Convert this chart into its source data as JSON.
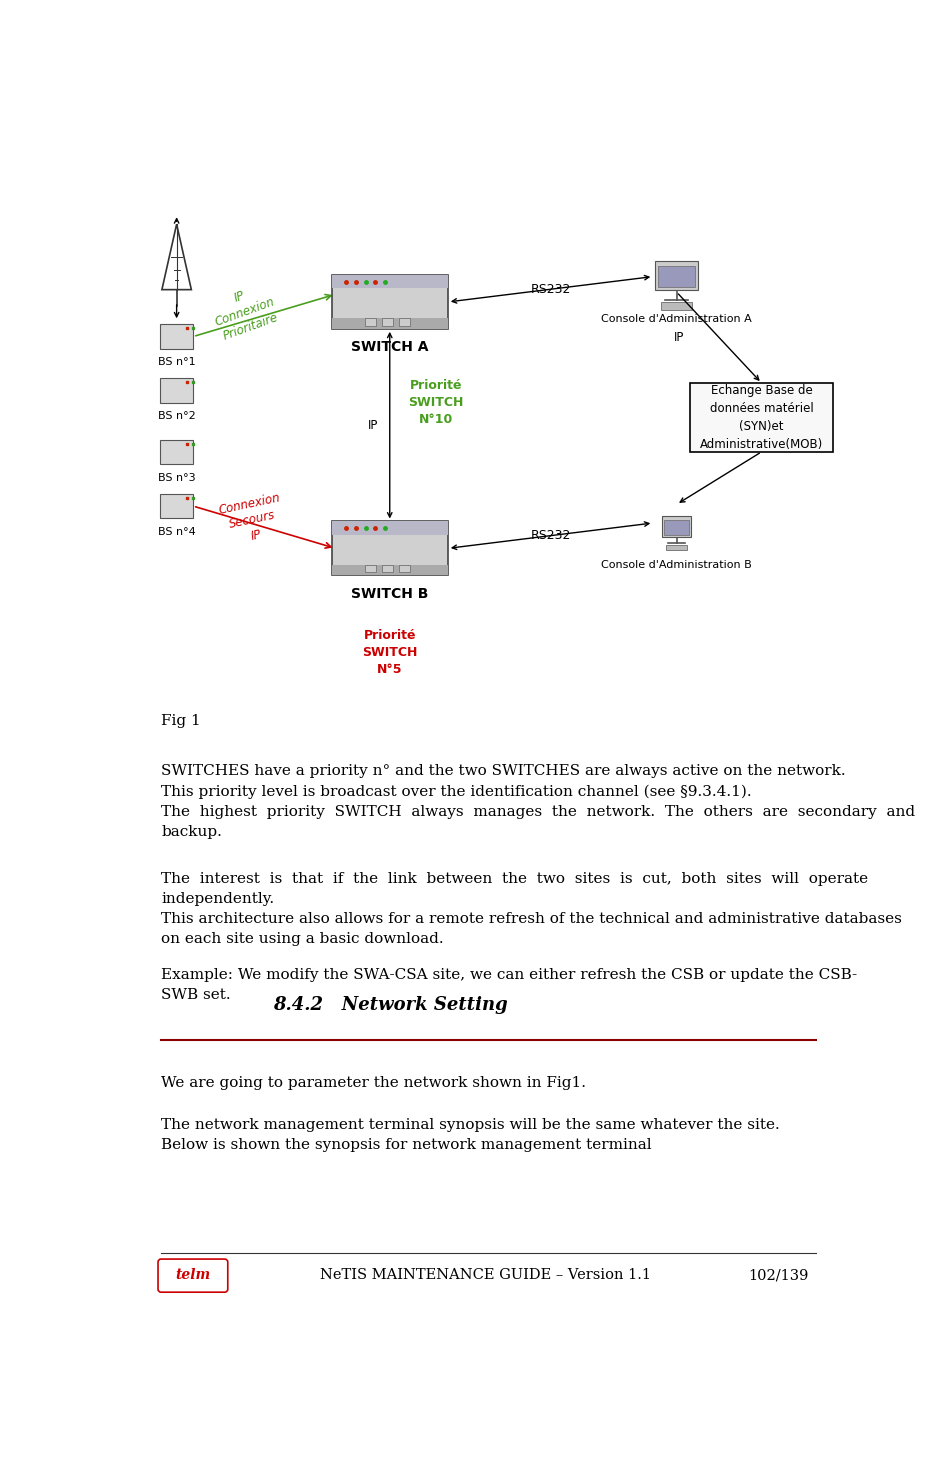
{
  "page_width": 9.48,
  "page_height": 14.64,
  "bg_color": "#ffffff",
  "fig1_caption": "Fig 1",
  "section_line_color": "#8B0000",
  "footer_text": "NeTIS MAINTENANCE GUIDE – Version 1.1",
  "footer_page": "102/139",
  "diagram": {
    "switch_a_label": "SWITCH A",
    "switch_b_label": "SWITCH B",
    "switch_a_priority_label": "Priorité\nSWITCH\nN°10",
    "switch_b_priority_label": "Priorité\nSWITCH\nN°5",
    "priority_color_a": "#4a9e1e",
    "priority_color_b": "#cc0000",
    "connexion_prioritaire_label": "IP\nConnexion\nPrioritaire",
    "connexion_secours_label": "Connexion\nSecours\nIP",
    "connexion_prioritaire_color": "#4a9e1e",
    "connexion_secours_color": "#cc0000",
    "rs232_label": "RS232",
    "console_a_label": "Console d'Administration A",
    "console_b_label": "Console d'Administration B",
    "ip_link_label": "IP",
    "echange_label": "Echange Base de\ndonnées matériel\n(SYN)et\nAdministrative(MOB)",
    "bs_labels": [
      "BS n°1",
      "BS n°2",
      "BS n°3",
      "BS n°4"
    ]
  },
  "para1": "SWITCHES have a priority n° and the two SWITCHES are always active on the network.\nThis priority level is broadcast over the identification channel (see §9.3.4.1).\nThe  highest  priority  SWITCH  always  manages  the  network.  The  others  are  secondary  and\nbackup.",
  "para2": "The  interest  is  that  if  the  link  between  the  two  sites  is  cut,  both  sites  will  operate\nindependently.\nThis architecture also allows for a remote refresh of the technical and administrative databases\non each site using a basic download.",
  "para3": "Example: We modify the SWA-CSA site, we can either refresh the CSB or update the CSB-\nSWB set.",
  "para4": "We are going to parameter the network shown in Fig1.",
  "para5": "The network management terminal synopsis will be the same whatever the site.\nBelow is shown the synopsis for network management terminal"
}
